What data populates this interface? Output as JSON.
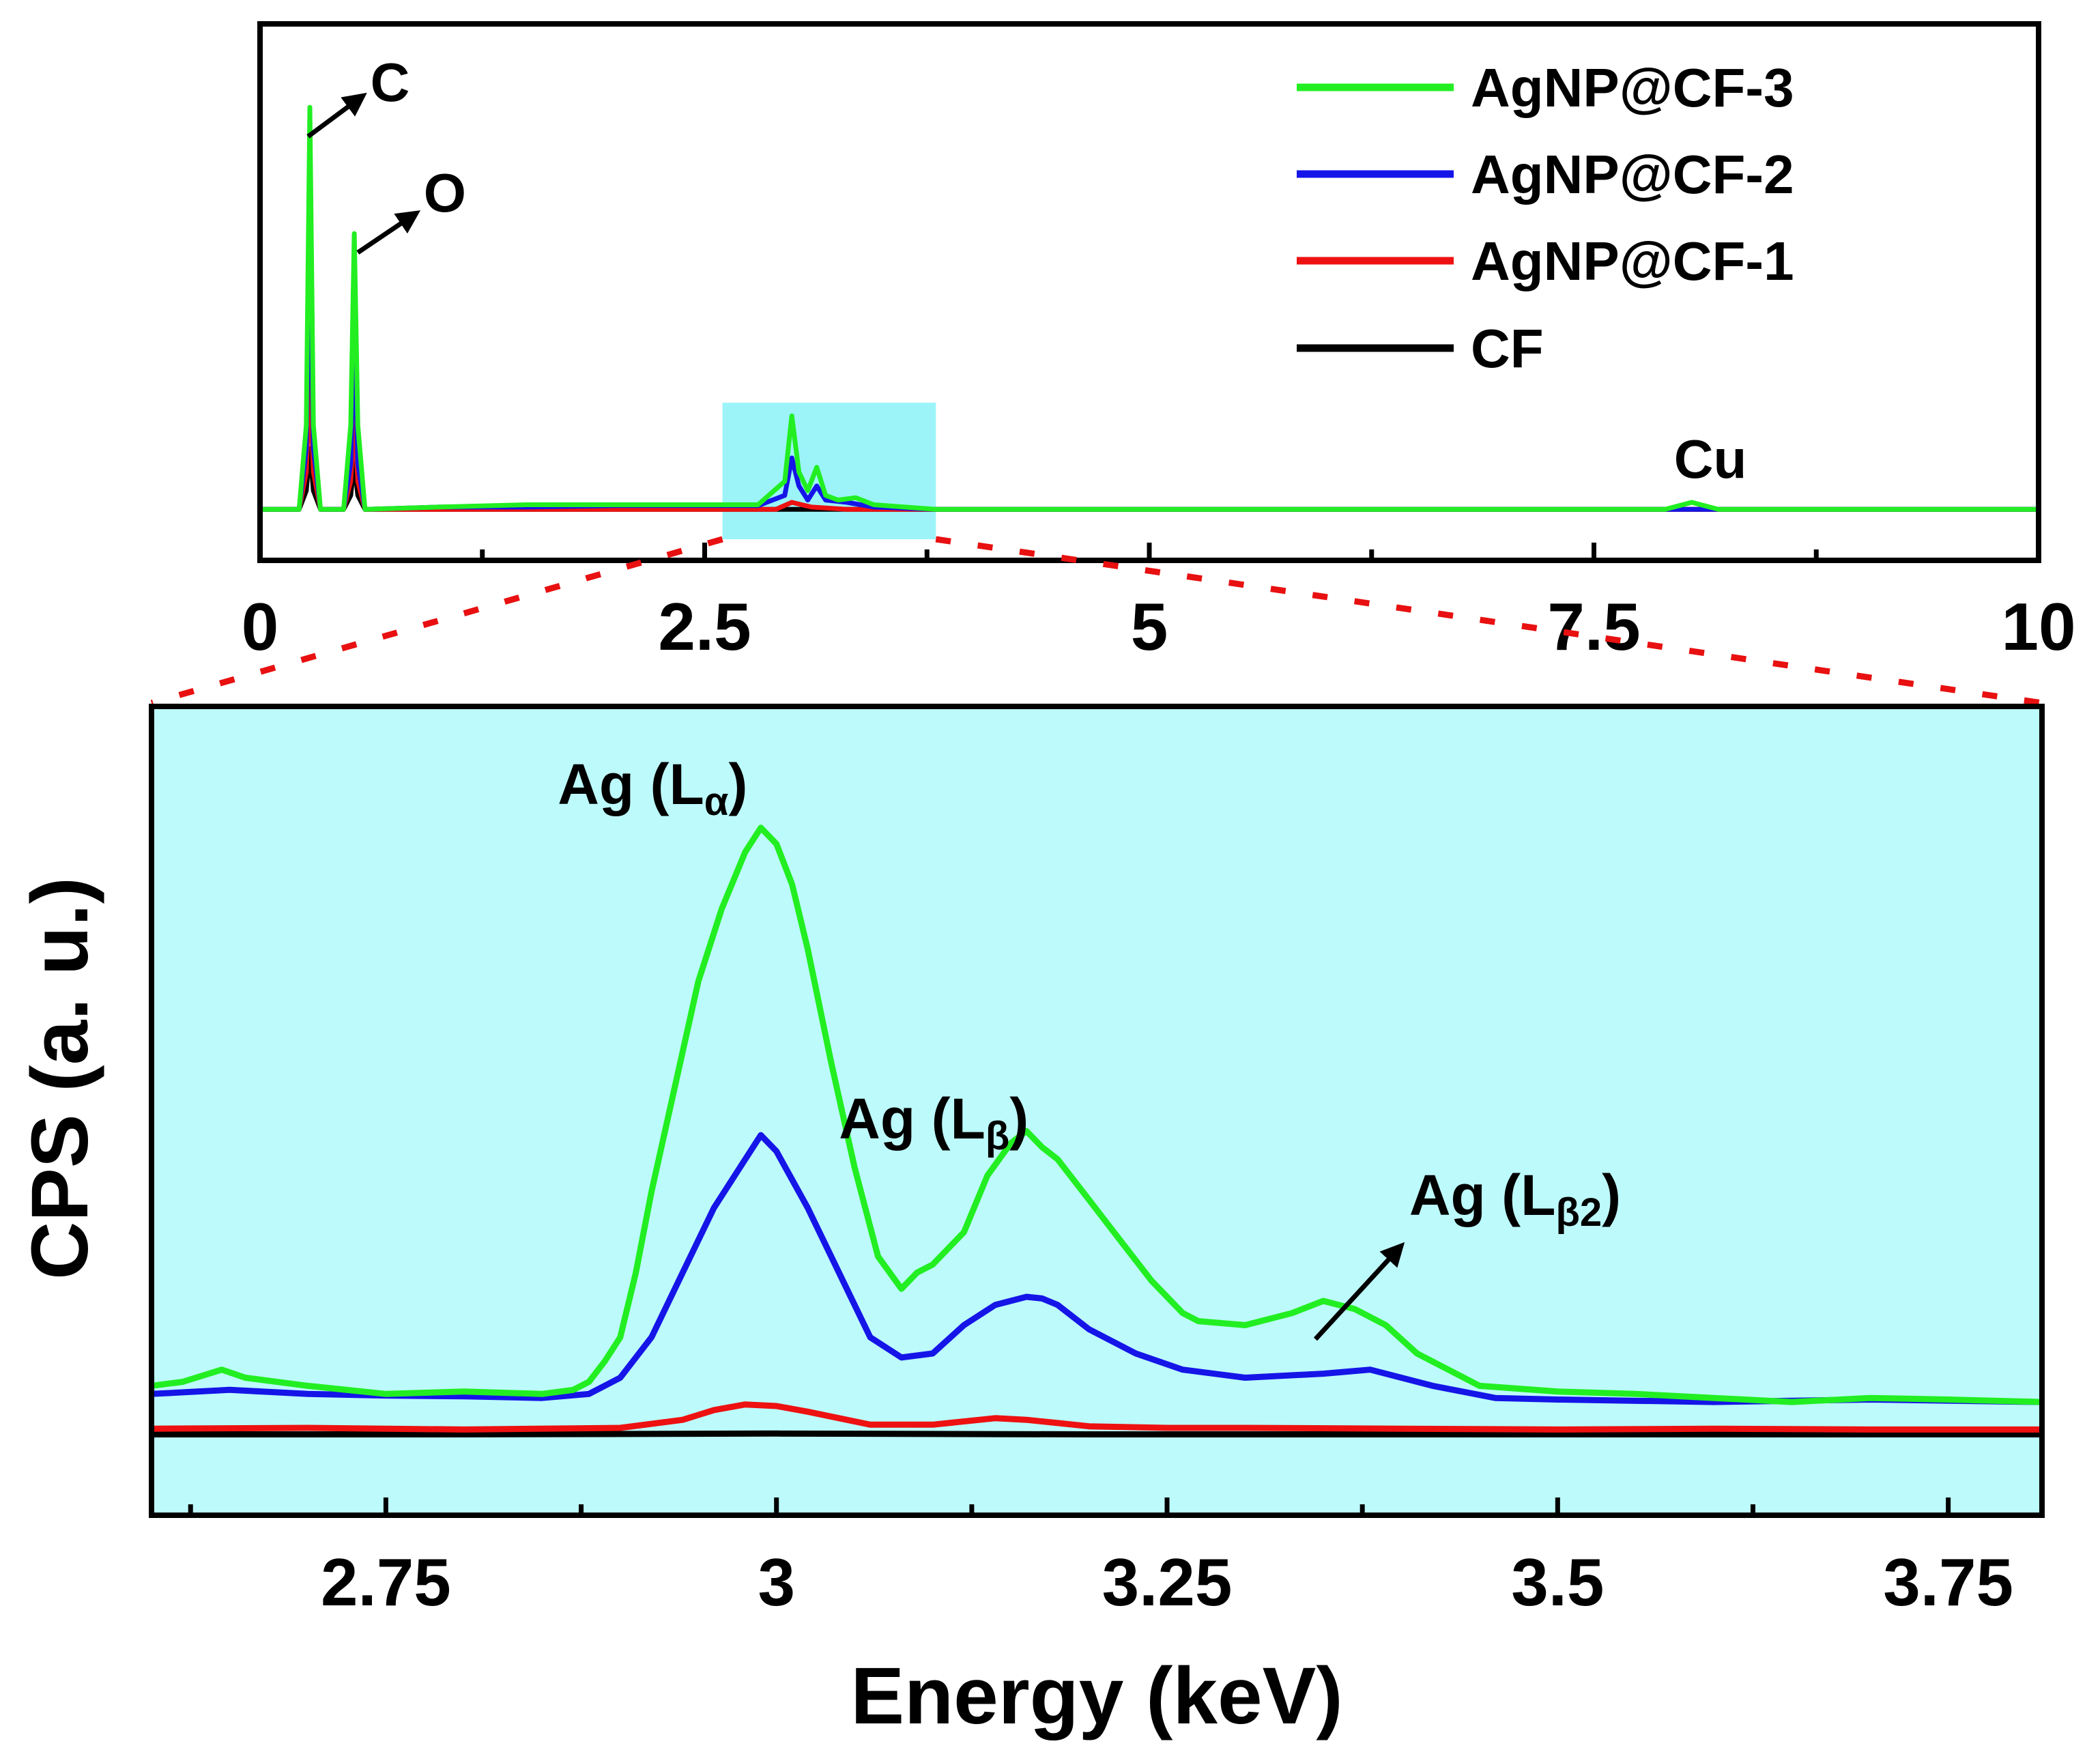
{
  "chart_data": [
    {
      "id": "overview",
      "type": "line",
      "xlabel": "",
      "ylabel": "",
      "xlim": [
        0,
        10
      ],
      "ylim": [
        0,
        1
      ],
      "x_ticks": [
        "0",
        "2.5",
        "5",
        "7.5",
        "10"
      ],
      "x_tick_values": [
        0,
        2.5,
        5,
        7.5,
        10
      ],
      "highlight_region": {
        "x_range": [
          2.6,
          3.8
        ],
        "color": "#9cf4f8"
      },
      "annotations": [
        {
          "key": "C",
          "text": "C",
          "x": 0.27,
          "y": 0.88
        },
        {
          "key": "O",
          "text": "O",
          "x": 0.53,
          "y": 0.73
        },
        {
          "key": "Cu",
          "text": "Cu",
          "x": 8.05,
          "y": 0.08
        }
      ],
      "legend": {
        "position": "top-right",
        "entries": [
          "AgNP@CF-3",
          "AgNP@CF-2",
          "AgNP@CF-1",
          "CF"
        ]
      },
      "series": [
        {
          "name": "AgNP@CF-3",
          "color": "#22ee22",
          "points": [
            [
              0,
              0.02
            ],
            [
              0.22,
              0.02
            ],
            [
              0.26,
              0.2
            ],
            [
              0.28,
              0.88
            ],
            [
              0.3,
              0.2
            ],
            [
              0.34,
              0.02
            ],
            [
              0.47,
              0.02
            ],
            [
              0.51,
              0.2
            ],
            [
              0.53,
              0.61
            ],
            [
              0.55,
              0.2
            ],
            [
              0.59,
              0.02
            ],
            [
              1.0,
              0.025
            ],
            [
              1.5,
              0.03
            ],
            [
              2.0,
              0.03
            ],
            [
              2.5,
              0.03
            ],
            [
              2.8,
              0.03
            ],
            [
              2.95,
              0.08
            ],
            [
              2.99,
              0.22
            ],
            [
              3.03,
              0.1
            ],
            [
              3.08,
              0.06
            ],
            [
              3.13,
              0.11
            ],
            [
              3.18,
              0.05
            ],
            [
              3.25,
              0.04
            ],
            [
              3.35,
              0.045
            ],
            [
              3.45,
              0.03
            ],
            [
              3.8,
              0.02
            ],
            [
              5.0,
              0.02
            ],
            [
              7.9,
              0.02
            ],
            [
              8.05,
              0.035
            ],
            [
              8.2,
              0.02
            ],
            [
              10,
              0.02
            ]
          ]
        },
        {
          "name": "AgNP@CF-2",
          "color": "#1515e8",
          "points": [
            [
              0,
              0.02
            ],
            [
              0.22,
              0.02
            ],
            [
              0.26,
              0.15
            ],
            [
              0.28,
              0.62
            ],
            [
              0.3,
              0.15
            ],
            [
              0.34,
              0.02
            ],
            [
              0.47,
              0.02
            ],
            [
              0.51,
              0.12
            ],
            [
              0.53,
              0.43
            ],
            [
              0.55,
              0.12
            ],
            [
              0.59,
              0.02
            ],
            [
              1.0,
              0.025
            ],
            [
              1.5,
              0.025
            ],
            [
              2.0,
              0.028
            ],
            [
              2.5,
              0.028
            ],
            [
              2.8,
              0.028
            ],
            [
              2.95,
              0.05
            ],
            [
              2.99,
              0.13
            ],
            [
              3.03,
              0.07
            ],
            [
              3.08,
              0.04
            ],
            [
              3.13,
              0.07
            ],
            [
              3.18,
              0.04
            ],
            [
              3.3,
              0.035
            ],
            [
              3.45,
              0.025
            ],
            [
              3.8,
              0.02
            ],
            [
              10,
              0.02
            ]
          ]
        },
        {
          "name": "AgNP@CF-1",
          "color": "#ee1111",
          "points": [
            [
              0,
              0.02
            ],
            [
              0.22,
              0.02
            ],
            [
              0.26,
              0.1
            ],
            [
              0.28,
              0.3
            ],
            [
              0.3,
              0.1
            ],
            [
              0.34,
              0.02
            ],
            [
              0.47,
              0.02
            ],
            [
              0.51,
              0.08
            ],
            [
              0.53,
              0.22
            ],
            [
              0.55,
              0.08
            ],
            [
              0.59,
              0.02
            ],
            [
              2.9,
              0.02
            ],
            [
              2.99,
              0.035
            ],
            [
              3.1,
              0.025
            ],
            [
              3.3,
              0.02
            ],
            [
              10,
              0.02
            ]
          ]
        },
        {
          "name": "CF",
          "color": "#000000",
          "points": [
            [
              0,
              0.02
            ],
            [
              0.22,
              0.02
            ],
            [
              0.26,
              0.06
            ],
            [
              0.28,
              0.15
            ],
            [
              0.3,
              0.06
            ],
            [
              0.34,
              0.02
            ],
            [
              0.47,
              0.02
            ],
            [
              0.51,
              0.05
            ],
            [
              0.53,
              0.12
            ],
            [
              0.55,
              0.05
            ],
            [
              0.59,
              0.02
            ],
            [
              10,
              0.02
            ]
          ]
        }
      ]
    },
    {
      "id": "zoom",
      "type": "line",
      "xlabel": "Energy (keV)",
      "ylabel": "CPS (a. u.)",
      "xlim": [
        2.6,
        3.81
      ],
      "ylim": [
        0,
        1
      ],
      "x_ticks": [
        "2.75",
        "3",
        "3.25",
        "3.5",
        "3.75"
      ],
      "x_tick_values": [
        2.75,
        3.0,
        3.25,
        3.5,
        3.75
      ],
      "background": "#bdfafb",
      "annotations": [
        {
          "key": "la",
          "base": "Ag (L",
          "sub": "α",
          "suffix": ")",
          "x": 2.99,
          "y": 0.89
        },
        {
          "key": "lb",
          "base": "Ag (L",
          "sub": "β",
          "suffix": ")",
          "x": 3.17,
          "y": 0.49
        },
        {
          "key": "lb2",
          "base": "Ag (L",
          "sub": "β2",
          "suffix": ")",
          "x": 3.32,
          "y": 0.38
        }
      ],
      "series": [
        {
          "name": "AgNP@CF-3",
          "color": "#22ee22",
          "x": [
            2.6,
            2.62,
            2.645,
            2.66,
            2.7,
            2.75,
            2.8,
            2.85,
            2.87,
            2.88,
            2.89,
            2.9,
            2.91,
            2.92,
            2.935,
            2.95,
            2.965,
            2.98,
            2.99,
            3.0,
            3.01,
            3.02,
            3.035,
            3.05,
            3.065,
            3.08,
            3.09,
            3.1,
            3.12,
            3.135,
            3.15,
            3.16,
            3.17,
            3.18,
            3.2,
            3.22,
            3.24,
            3.26,
            3.27,
            3.3,
            3.33,
            3.35,
            3.37,
            3.39,
            3.41,
            3.45,
            3.5,
            3.55,
            3.6,
            3.65,
            3.7,
            3.75,
            3.81
          ],
          "y": [
            0.16,
            0.165,
            0.18,
            0.17,
            0.16,
            0.15,
            0.153,
            0.15,
            0.155,
            0.165,
            0.19,
            0.22,
            0.3,
            0.4,
            0.53,
            0.66,
            0.75,
            0.82,
            0.85,
            0.83,
            0.78,
            0.7,
            0.56,
            0.43,
            0.32,
            0.28,
            0.3,
            0.31,
            0.35,
            0.42,
            0.46,
            0.475,
            0.455,
            0.44,
            0.39,
            0.34,
            0.29,
            0.25,
            0.24,
            0.235,
            0.25,
            0.265,
            0.255,
            0.235,
            0.2,
            0.16,
            0.153,
            0.15,
            0.145,
            0.14,
            0.145,
            0.143,
            0.14
          ]
        },
        {
          "name": "AgNP@CF-2",
          "color": "#1515e8",
          "x": [
            2.6,
            2.65,
            2.7,
            2.75,
            2.8,
            2.85,
            2.88,
            2.9,
            2.92,
            2.94,
            2.96,
            2.98,
            2.99,
            3.0,
            3.02,
            3.04,
            3.06,
            3.08,
            3.1,
            3.12,
            3.14,
            3.16,
            3.17,
            3.18,
            3.2,
            3.23,
            3.26,
            3.3,
            3.35,
            3.38,
            3.42,
            3.46,
            3.5,
            3.6,
            3.7,
            3.81
          ],
          "y": [
            0.15,
            0.155,
            0.15,
            0.148,
            0.147,
            0.145,
            0.15,
            0.17,
            0.22,
            0.3,
            0.38,
            0.44,
            0.47,
            0.45,
            0.38,
            0.3,
            0.22,
            0.195,
            0.2,
            0.235,
            0.26,
            0.27,
            0.268,
            0.26,
            0.23,
            0.2,
            0.18,
            0.17,
            0.175,
            0.18,
            0.16,
            0.145,
            0.143,
            0.14,
            0.143,
            0.14
          ]
        },
        {
          "name": "AgNP@CF-1",
          "color": "#ee1111",
          "x": [
            2.6,
            2.7,
            2.8,
            2.9,
            2.94,
            2.96,
            2.98,
            3.0,
            3.02,
            3.04,
            3.06,
            3.1,
            3.14,
            3.16,
            3.18,
            3.2,
            3.25,
            3.3,
            3.4,
            3.5,
            3.6,
            3.7,
            3.81
          ],
          "y": [
            0.107,
            0.108,
            0.106,
            0.108,
            0.118,
            0.13,
            0.137,
            0.135,
            0.128,
            0.12,
            0.112,
            0.112,
            0.12,
            0.118,
            0.114,
            0.11,
            0.108,
            0.108,
            0.107,
            0.106,
            0.107,
            0.106,
            0.106
          ]
        },
        {
          "name": "CF",
          "color": "#000000",
          "x": [
            2.6,
            2.8,
            3.0,
            3.2,
            3.4,
            3.6,
            3.81
          ],
          "y": [
            0.1,
            0.1,
            0.101,
            0.1,
            0.1,
            0.1,
            0.1
          ]
        }
      ]
    }
  ]
}
